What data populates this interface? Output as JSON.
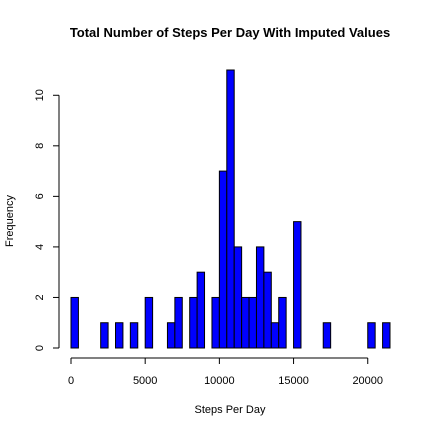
{
  "chart_data": {
    "type": "bar",
    "title": "Total Number of Steps Per Day With Imputed Values",
    "xlabel": "Steps Per Day",
    "ylabel": "Frequency",
    "bin_width": 500,
    "bins_start": [
      0,
      2000,
      3000,
      4000,
      5000,
      6500,
      7000,
      8000,
      8500,
      9500,
      10000,
      10500,
      11000,
      11500,
      12000,
      12500,
      13000,
      13500,
      14000,
      15000,
      17000,
      20000,
      21000
    ],
    "values": [
      2,
      1,
      1,
      1,
      2,
      1,
      2,
      2,
      3,
      2,
      7,
      11,
      4,
      2,
      2,
      4,
      3,
      1,
      2,
      5,
      1,
      1,
      1
    ],
    "xlim": [
      0,
      21500
    ],
    "ylim": [
      0,
      11
    ],
    "x_ticks": [
      0,
      5000,
      10000,
      15000,
      20000
    ],
    "x_tick_labels": [
      "0",
      "5000",
      "10000",
      "15000",
      "20000"
    ],
    "y_ticks": [
      0,
      2,
      4,
      6,
      8,
      10
    ],
    "y_tick_labels": [
      "0",
      "2",
      "4",
      "6",
      "8",
      "10"
    ],
    "bar_color": "#0000ff",
    "bar_border": "#000000",
    "grid": false
  }
}
